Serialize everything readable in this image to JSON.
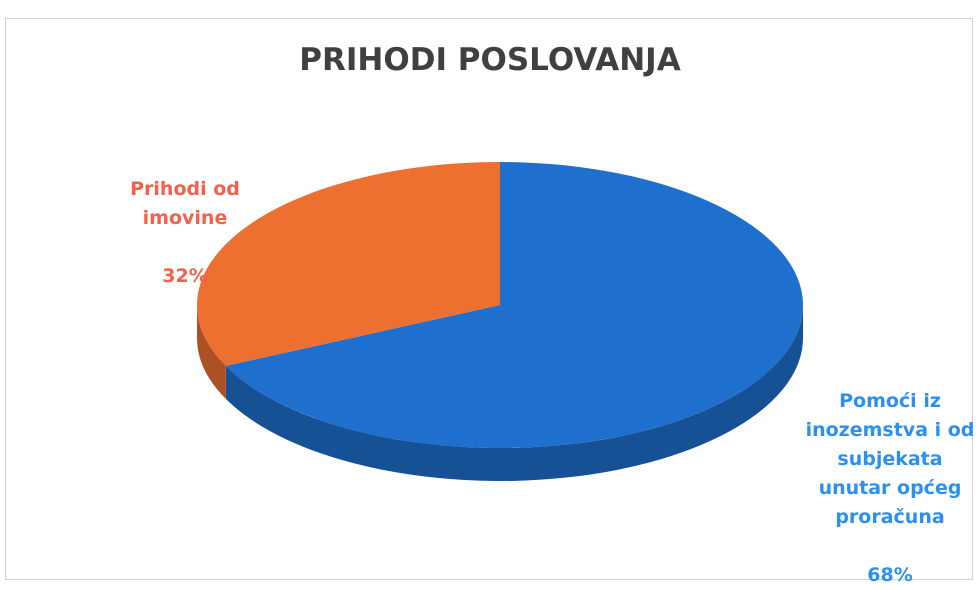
{
  "chart_data": {
    "type": "pie",
    "title": "PRIHODI POSLOVANJA",
    "three_d": true,
    "slices": [
      {
        "name": "Prihodi od imovine",
        "display_label": "Prihodi od\nimovine",
        "value": 32,
        "pct_label": "32%",
        "color": "#ed7031"
      },
      {
        "name": "Pomoći iz inozemstva i od subjekata unutar općeg proračuna",
        "display_label": "Pomoći iz\ninozemstva i od\nsubjekata\nunutar općeg\nproračuna",
        "value": 68,
        "pct_label": "68%",
        "color": "#1f6fcf"
      }
    ],
    "label_colors": [
      "#f4604a",
      "#2b90ef"
    ]
  }
}
